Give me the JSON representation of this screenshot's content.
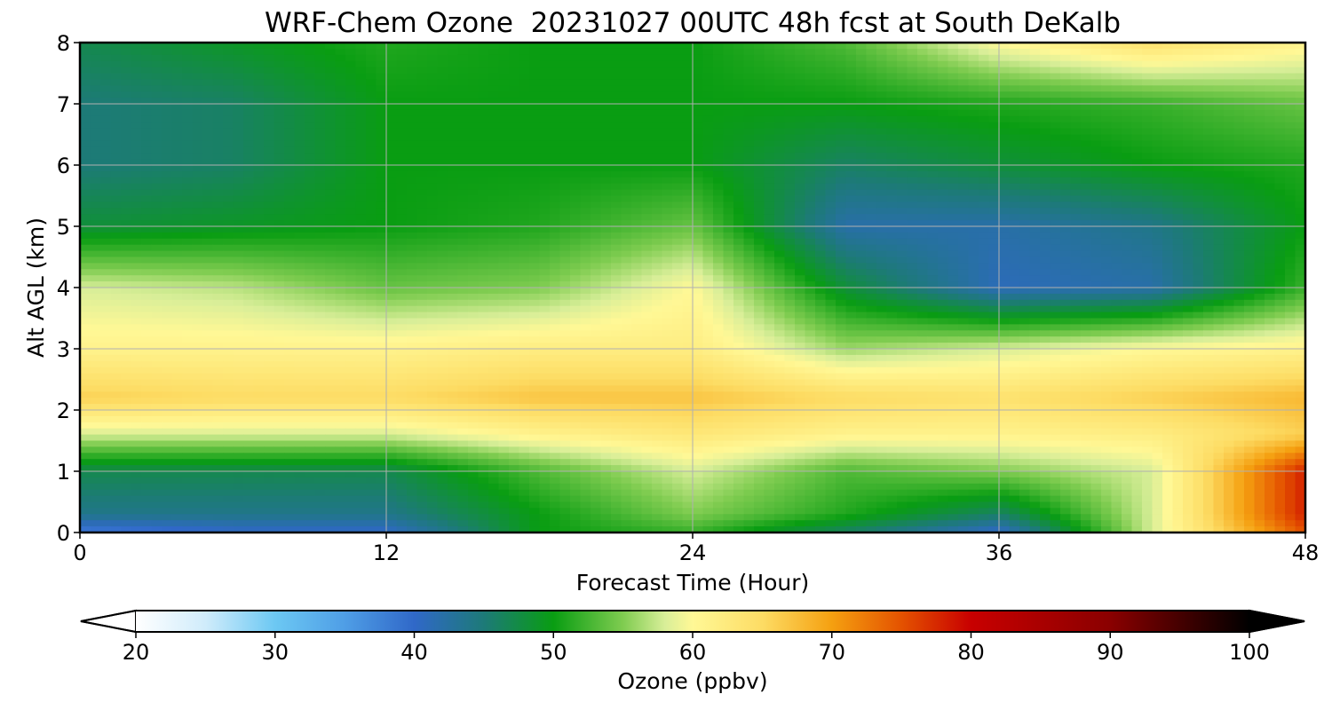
{
  "chart_data": {
    "type": "heatmap",
    "title": "WRF-Chem Ozone  20231027 00UTC 48h fcst at South DeKalb",
    "xlabel": "Forecast Time (Hour)",
    "ylabel": "Alt AGL (km)",
    "xlim": [
      0,
      48
    ],
    "ylim": [
      0,
      8
    ],
    "xticks": [
      "0",
      "12",
      "24",
      "36",
      "48"
    ],
    "yticks": [
      "0",
      "1",
      "2",
      "3",
      "4",
      "5",
      "6",
      "7",
      "8"
    ],
    "grid": true,
    "hours": [
      0,
      6,
      12,
      18,
      24,
      30,
      36,
      42,
      48
    ],
    "altitudes_km": [
      0,
      0.3,
      1,
      1.6,
      2.2,
      3,
      4,
      5,
      6,
      7,
      8
    ],
    "ozone_ppbv": [
      [
        38,
        40,
        40,
        50,
        52,
        46,
        40,
        58,
        75
      ],
      [
        44,
        44,
        44,
        50,
        55,
        51,
        46,
        58,
        78
      ],
      [
        47,
        47,
        47,
        53,
        58,
        53,
        55,
        58,
        78
      ],
      [
        58,
        58,
        58,
        61,
        63,
        61,
        61,
        62,
        66
      ],
      [
        66,
        65,
        65,
        67,
        67,
        65,
        64,
        66,
        68
      ],
      [
        61,
        61,
        61,
        62,
        62,
        56,
        58,
        60,
        61
      ],
      [
        58,
        57,
        54,
        55,
        60,
        48,
        41,
        42,
        52
      ],
      [
        48,
        49,
        50,
        51,
        54,
        42,
        42,
        44,
        50
      ],
      [
        45,
        46,
        50,
        50,
        50,
        46,
        48,
        50,
        51
      ],
      [
        45,
        46,
        50,
        50,
        50,
        50,
        51,
        52,
        54
      ],
      [
        47,
        49,
        51,
        50,
        50,
        53,
        60,
        64,
        61
      ]
    ],
    "colorbar": {
      "label": "Ozone  (ppbv)",
      "min": 20,
      "max": 100,
      "ticks": [
        "20",
        "30",
        "40",
        "50",
        "60",
        "70",
        "80",
        "90",
        "100"
      ],
      "extend": "both",
      "stops": [
        {
          "v": 20,
          "c": "#ffffff"
        },
        {
          "v": 25,
          "c": "#d0ecfb"
        },
        {
          "v": 30,
          "c": "#6cc8f3"
        },
        {
          "v": 35,
          "c": "#4f9ee6"
        },
        {
          "v": 40,
          "c": "#3068c8"
        },
        {
          "v": 45,
          "c": "#1d7a78"
        },
        {
          "v": 50,
          "c": "#099d12"
        },
        {
          "v": 55,
          "c": "#7fcc50"
        },
        {
          "v": 58,
          "c": "#d8ee98"
        },
        {
          "v": 60,
          "c": "#fff896"
        },
        {
          "v": 65,
          "c": "#fddc64"
        },
        {
          "v": 70,
          "c": "#f5a010"
        },
        {
          "v": 75,
          "c": "#e45200"
        },
        {
          "v": 80,
          "c": "#c80000"
        },
        {
          "v": 90,
          "c": "#8a0000"
        },
        {
          "v": 100,
          "c": "#000000"
        }
      ]
    }
  }
}
